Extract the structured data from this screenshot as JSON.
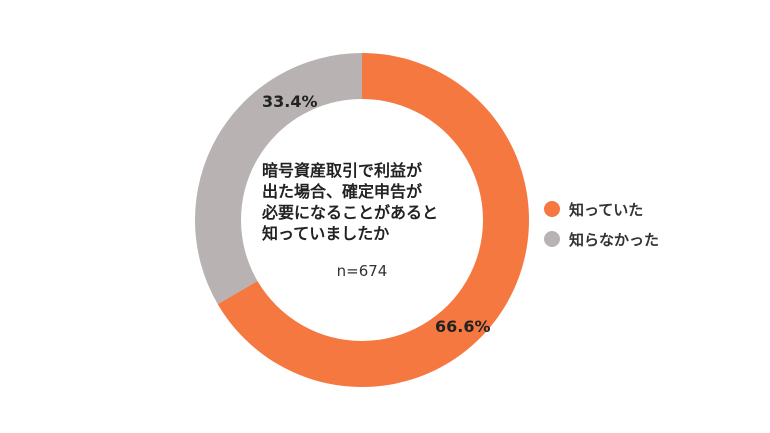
{
  "chart_data": {
    "type": "pie",
    "donut": true,
    "title": "暗号資産取引で利益が\n出た場合、確定申告が\n必要になることがあると\n知っていましたか",
    "note": "n=674",
    "legend_position": "right",
    "slices": [
      {
        "name": "知っていた",
        "value": 66.6,
        "label": "66.6%",
        "color": "#F47840"
      },
      {
        "name": "知らなかった",
        "value": 33.4,
        "label": "33.4%",
        "color": "#B9B2B2"
      }
    ]
  }
}
